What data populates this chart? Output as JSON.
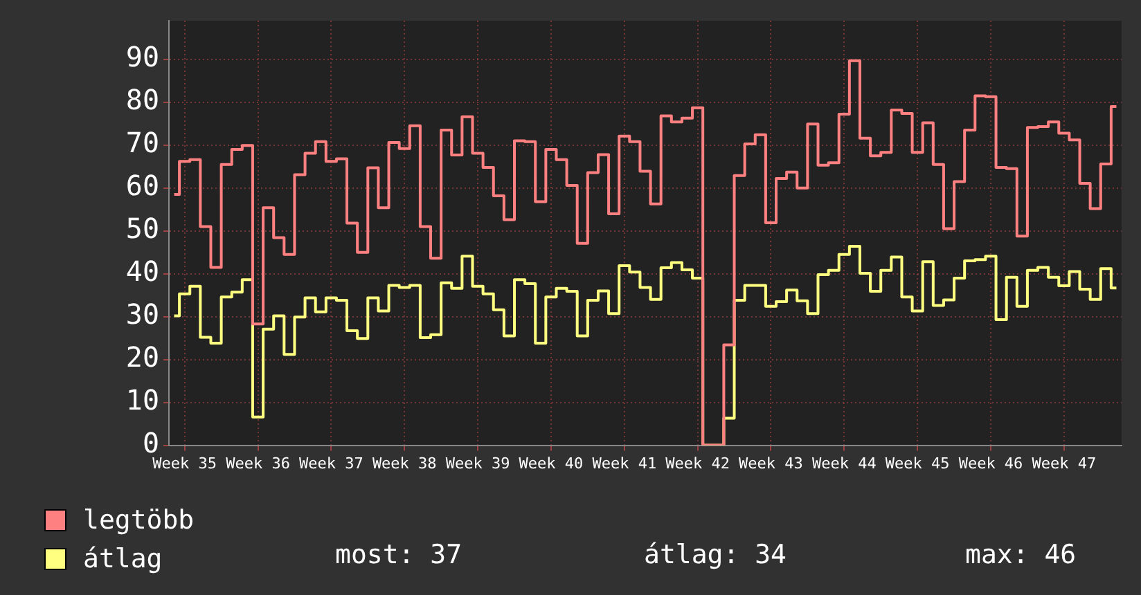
{
  "chart_data": {
    "type": "step",
    "categories": [
      null,
      "Week 35",
      null,
      null,
      null,
      null,
      null,
      null,
      "Week 36",
      null,
      null,
      null,
      null,
      null,
      null,
      "Week 37",
      null,
      null,
      null,
      null,
      null,
      null,
      "Week 38",
      null,
      null,
      null,
      null,
      null,
      null,
      "Week 39",
      null,
      null,
      null,
      null,
      null,
      null,
      "Week 40",
      null,
      null,
      null,
      null,
      null,
      null,
      "Week 41",
      null,
      null,
      null,
      null,
      null,
      null,
      "Week 42",
      null,
      null,
      null,
      null,
      null,
      null,
      "Week 43",
      null,
      null,
      null,
      null,
      null,
      null,
      "Week 44",
      null,
      null,
      null,
      null,
      null,
      null,
      "Week 45",
      null,
      null,
      null,
      null,
      null,
      null,
      "Week 46",
      null,
      null,
      null,
      null,
      null,
      null,
      "Week 47",
      null,
      null,
      null,
      null,
      null
    ],
    "series": [
      {
        "name": "legtöbb",
        "color": "#ff8080",
        "values": [
          58.5,
          66.2,
          66.6,
          51,
          41.5,
          65.5,
          69,
          69.9,
          28.3,
          55.4,
          48.4,
          44.5,
          63.1,
          68.1,
          70.8,
          66.2,
          66.8,
          51.8,
          45,
          64.7,
          55.4,
          70.6,
          69.2,
          74.5,
          51,
          43.6,
          73.5,
          67.7,
          76.6,
          68.1,
          64.8,
          58.2,
          52.6,
          71,
          70.8,
          56.8,
          69,
          66.6,
          60.6,
          47.1,
          63.6,
          67.8,
          54,
          72.1,
          70.8,
          63.9,
          56.3,
          76.8,
          75.4,
          76.3,
          78.7,
          0,
          0,
          23.4,
          62.9,
          70.3,
          72.4,
          51.9,
          62.2,
          63.7,
          60,
          74.9,
          65.3,
          65.9,
          77.2,
          89.7,
          71.6,
          67.5,
          68.3,
          78.2,
          77.4,
          68.3,
          75.2,
          65.5,
          50.5,
          61.5,
          73.5,
          81.5,
          81.3,
          64.8,
          64.5,
          48.8,
          74.1,
          74.3,
          75.4,
          72.8,
          71.2,
          61.1,
          55.2,
          65.6,
          79
        ]
      },
      {
        "name": "átlag",
        "color": "#ffff80",
        "values": [
          30.2,
          35.3,
          37.1,
          25.2,
          23.8,
          34.6,
          35.7,
          38.6,
          6.6,
          27.1,
          30.2,
          21.2,
          29.9,
          34.4,
          31.1,
          34.4,
          33.8,
          26.7,
          24.9,
          34.4,
          31.3,
          37.3,
          36.8,
          37.3,
          25.1,
          25.8,
          37.9,
          36.6,
          44.1,
          37.1,
          35.3,
          31.6,
          25.5,
          38.6,
          37.7,
          23.8,
          34.6,
          36.6,
          35.9,
          25.5,
          33.8,
          36,
          30.7,
          41.9,
          40.4,
          36.8,
          34,
          41.4,
          42.6,
          40.9,
          39,
          0,
          0,
          6.3,
          33.8,
          37.3,
          37.3,
          32.4,
          33.5,
          36.2,
          33.7,
          30.7,
          39.8,
          40.8,
          44.5,
          46.4,
          40.1,
          35.9,
          40.8,
          43.9,
          34.6,
          31.3,
          42.8,
          32.6,
          33.9,
          39,
          43,
          43.3,
          44.1,
          29.3,
          39.2,
          32.4,
          40.8,
          41.5,
          39.2,
          37.2,
          40.5,
          36.4,
          34,
          41.2,
          36.7
        ]
      }
    ],
    "ylim": [
      0,
      99
    ],
    "yticks": [
      0,
      10,
      20,
      30,
      40,
      50,
      60,
      70,
      80,
      90
    ],
    "grid": true,
    "legend": "bottom",
    "annotations": [
      "most: 37",
      "átlag: 34",
      "max: 46"
    ]
  }
}
